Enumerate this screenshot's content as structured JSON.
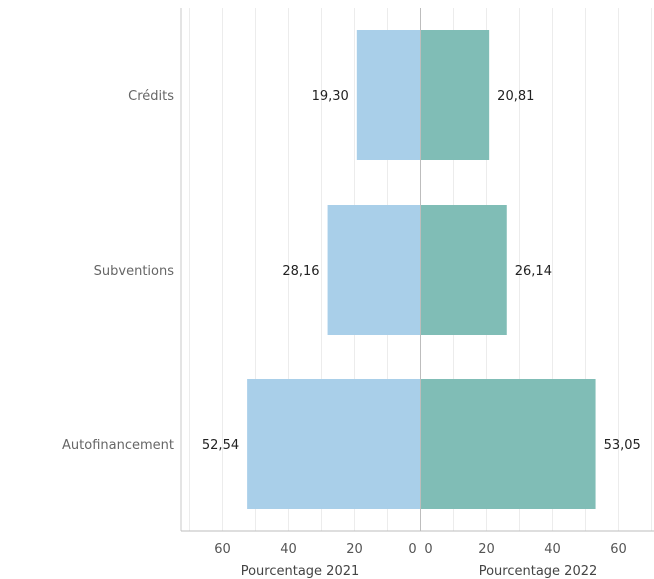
{
  "chart_data": {
    "type": "bar",
    "orientation": "horizontal-diverging",
    "categories": [
      "Crédits",
      "Subventions",
      "Autofinancement"
    ],
    "series": [
      {
        "name": "Pourcentage 2021",
        "values": [
          19.3,
          28.16,
          52.54
        ],
        "value_labels": [
          "19,30",
          "28,16",
          "52,54"
        ],
        "color": "#a9cfe9",
        "side": "left"
      },
      {
        "name": "Pourcentage 2022",
        "values": [
          20.81,
          26.14,
          53.05
        ],
        "value_labels": [
          "20,81",
          "26,14",
          "53,05"
        ],
        "color": "#80bdb6",
        "side": "right"
      }
    ],
    "xlim": [
      0,
      70
    ],
    "ticks": [
      0,
      20,
      40,
      60
    ],
    "left_axis_title": "Pourcentage 2021",
    "right_axis_title": "Pourcentage 2022",
    "grid": true
  }
}
